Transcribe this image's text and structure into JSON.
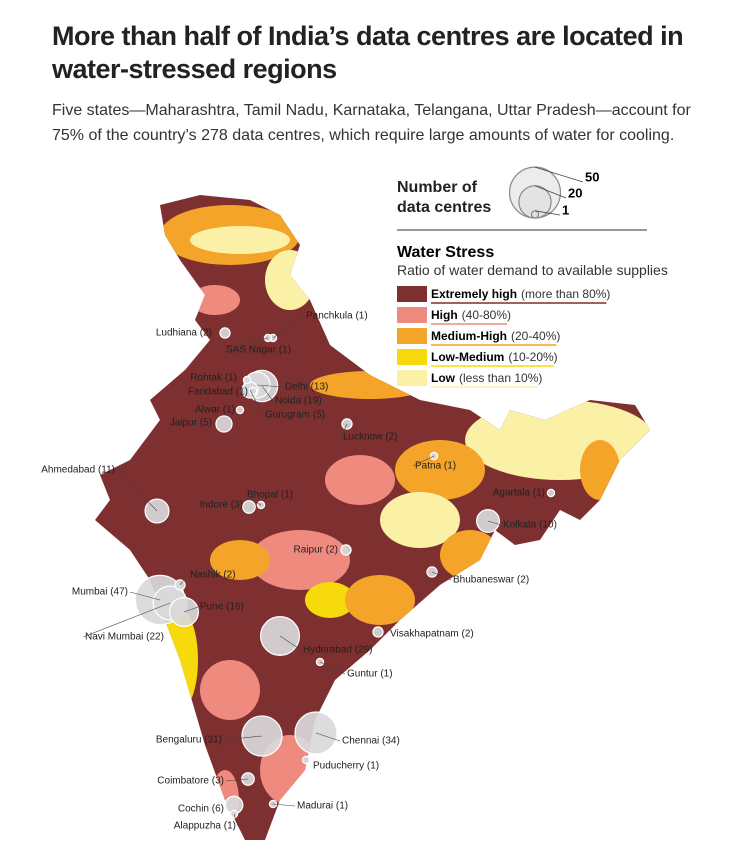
{
  "header": {
    "title": "More than half of India’s data centres are located in water-stressed regions",
    "subtitle": "Five states—Maharashtra, Tamil Nadu, Karnataka, Telangana, Uttar Pradesh—account for 75% of the country’s 278 data centres, which require large amounts of water for cooling."
  },
  "size_legend": {
    "title": "Number of data centres",
    "values": [
      50,
      20,
      1
    ]
  },
  "water_stress": {
    "title": "Water Stress",
    "subtitle": "Ratio of water demand to available supplies",
    "items": [
      {
        "label": "Extremely high",
        "range": "(more than 80%)",
        "color": "#7e2f2f"
      },
      {
        "label": "High",
        "range": "(40-80%)",
        "color": "#ef8a7e"
      },
      {
        "label": "Medium-High",
        "range": "(20-40%)",
        "color": "#f4a429"
      },
      {
        "label": "Low-Medium",
        "range": "(10-20%)",
        "color": "#f6da0c"
      },
      {
        "label": "Low",
        "range": "(less than 10%)",
        "color": "#fbf1a6"
      }
    ]
  },
  "cities": [
    {
      "label": "Ludhiana (2)",
      "count": 2
    },
    {
      "label": "Panchkula (1)",
      "count": 1
    },
    {
      "label": "SAS Nagar (1)",
      "count": 1
    },
    {
      "label": "Rohtak (1)",
      "count": 1
    },
    {
      "label": "Delhi (13)",
      "count": 13
    },
    {
      "label": "Faridabad (1)",
      "count": 1
    },
    {
      "label": "Noida (19)",
      "count": 19
    },
    {
      "label": "Gurugram (5)",
      "count": 5
    },
    {
      "label": "Alwar (1)",
      "count": 1
    },
    {
      "label": "Jaipur (5)",
      "count": 5
    },
    {
      "label": "Lucknow (2)",
      "count": 2
    },
    {
      "label": "Patna (1)",
      "count": 1
    },
    {
      "label": "Ahmedabad (11)",
      "count": 11
    },
    {
      "label": "Bhopal (1)",
      "count": 1
    },
    {
      "label": "Indore (3)",
      "count": 3
    },
    {
      "label": "Agartala (1)",
      "count": 1
    },
    {
      "label": "Kolkata (10)",
      "count": 10
    },
    {
      "label": "Raipur (2)",
      "count": 2
    },
    {
      "label": "Nashik (2)",
      "count": 2
    },
    {
      "label": "Mumbai (47)",
      "count": 47
    },
    {
      "label": "Pune (16)",
      "count": 16
    },
    {
      "label": "Navi Mumbai (22)",
      "count": 22
    },
    {
      "label": "Bhubaneswar (2)",
      "count": 2
    },
    {
      "label": "Visakhapatnam (2)",
      "count": 2
    },
    {
      "label": "Hyderabad (29)",
      "count": 29
    },
    {
      "label": "Guntur (1)",
      "count": 1
    },
    {
      "label": "Bengaluru (31)",
      "count": 31
    },
    {
      "label": "Chennai (34)",
      "count": 34
    },
    {
      "label": "Puducherry (1)",
      "count": 1
    },
    {
      "label": "Coimbatore (3)",
      "count": 3
    },
    {
      "label": "Cochin (6)",
      "count": 6
    },
    {
      "label": "Madurai (1)",
      "count": 1
    },
    {
      "label": "Alappuzha (1)",
      "count": 1
    }
  ]
}
